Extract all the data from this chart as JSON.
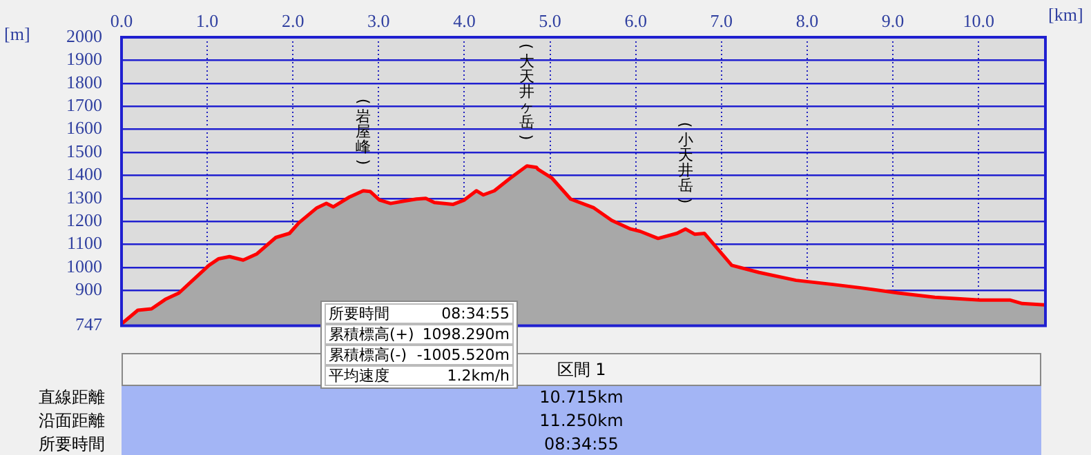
{
  "chart_data": {
    "type": "area",
    "xlabel": "[km]",
    "ylabel": "[m]",
    "x": [
      0,
      0.19,
      0.35,
      0.51,
      0.67,
      0.83,
      1.02,
      1.13,
      1.26,
      1.42,
      1.58,
      1.8,
      1.96,
      2.07,
      2.28,
      2.39,
      2.47,
      2.66,
      2.82,
      2.9,
      3.01,
      3.14,
      3.28,
      3.44,
      3.55,
      3.65,
      3.87,
      4.0,
      4.14,
      4.22,
      4.35,
      4.54,
      4.73,
      4.84,
      4.86,
      5.02,
      5.24,
      5.51,
      5.72,
      5.94,
      6.05,
      6.26,
      6.48,
      6.58,
      6.69,
      6.8,
      7.12,
      7.44,
      7.87,
      8.3,
      8.63,
      9.06,
      9.49,
      10.02,
      10.37,
      10.51,
      10.77
    ],
    "series": [
      {
        "color": "#ff0000",
        "values": [
          755,
          814,
          820,
          861,
          889,
          944,
          1009,
          1037,
          1047,
          1032,
          1059,
          1130,
          1148,
          1194,
          1259,
          1278,
          1263,
          1306,
          1333,
          1330,
          1293,
          1278,
          1287,
          1297,
          1300,
          1282,
          1274,
          1293,
          1333,
          1315,
          1333,
          1389,
          1441,
          1435,
          1426,
          1389,
          1297,
          1259,
          1204,
          1167,
          1157,
          1126,
          1148,
          1167,
          1144,
          1148,
          1009,
          978,
          944,
          926,
          911,
          889,
          870,
          858,
          858,
          843,
          837
        ]
      }
    ],
    "xlim": [
      0,
      10.78
    ],
    "xticks": [
      {
        "value": 0,
        "label": "0.0"
      },
      {
        "value": 1,
        "label": "1.0"
      },
      {
        "value": 2,
        "label": "2.0"
      },
      {
        "value": 3,
        "label": "3.0"
      },
      {
        "value": 4,
        "label": "4.0"
      },
      {
        "value": 5,
        "label": "5.0"
      },
      {
        "value": 6,
        "label": "6.0"
      },
      {
        "value": 7,
        "label": "7.0"
      },
      {
        "value": 8,
        "label": "8.0"
      },
      {
        "value": 9,
        "label": "9.0"
      },
      {
        "value": 10,
        "label": "10.0"
      }
    ],
    "ylim": [
      747,
      2000
    ],
    "yticks": [
      747,
      900,
      1000,
      1100,
      1200,
      1300,
      1400,
      1500,
      1600,
      1700,
      1800,
      1900,
      2000
    ],
    "grid": true,
    "marker": "none",
    "line_style": "solid",
    "annotations": [
      {
        "text": "(岩屋峰)",
        "x": 2.82,
        "y": 1333
      },
      {
        "text": "(大天井ヶ岳)",
        "x": 4.73,
        "y": 1441
      },
      {
        "text": "(小天井岳)",
        "x": 6.58,
        "y": 1167
      },
      "所要時間",
      "08:34:55",
      "累積標高(+)",
      "1098.290m",
      "累積標高(-)",
      "-1005.520m",
      "平均速度",
      "1.2km/h",
      "区間 1",
      "直線距離",
      "10.715km",
      "沿面距離",
      "11.250km",
      "所要時間",
      "08:34:55"
    ]
  }
}
